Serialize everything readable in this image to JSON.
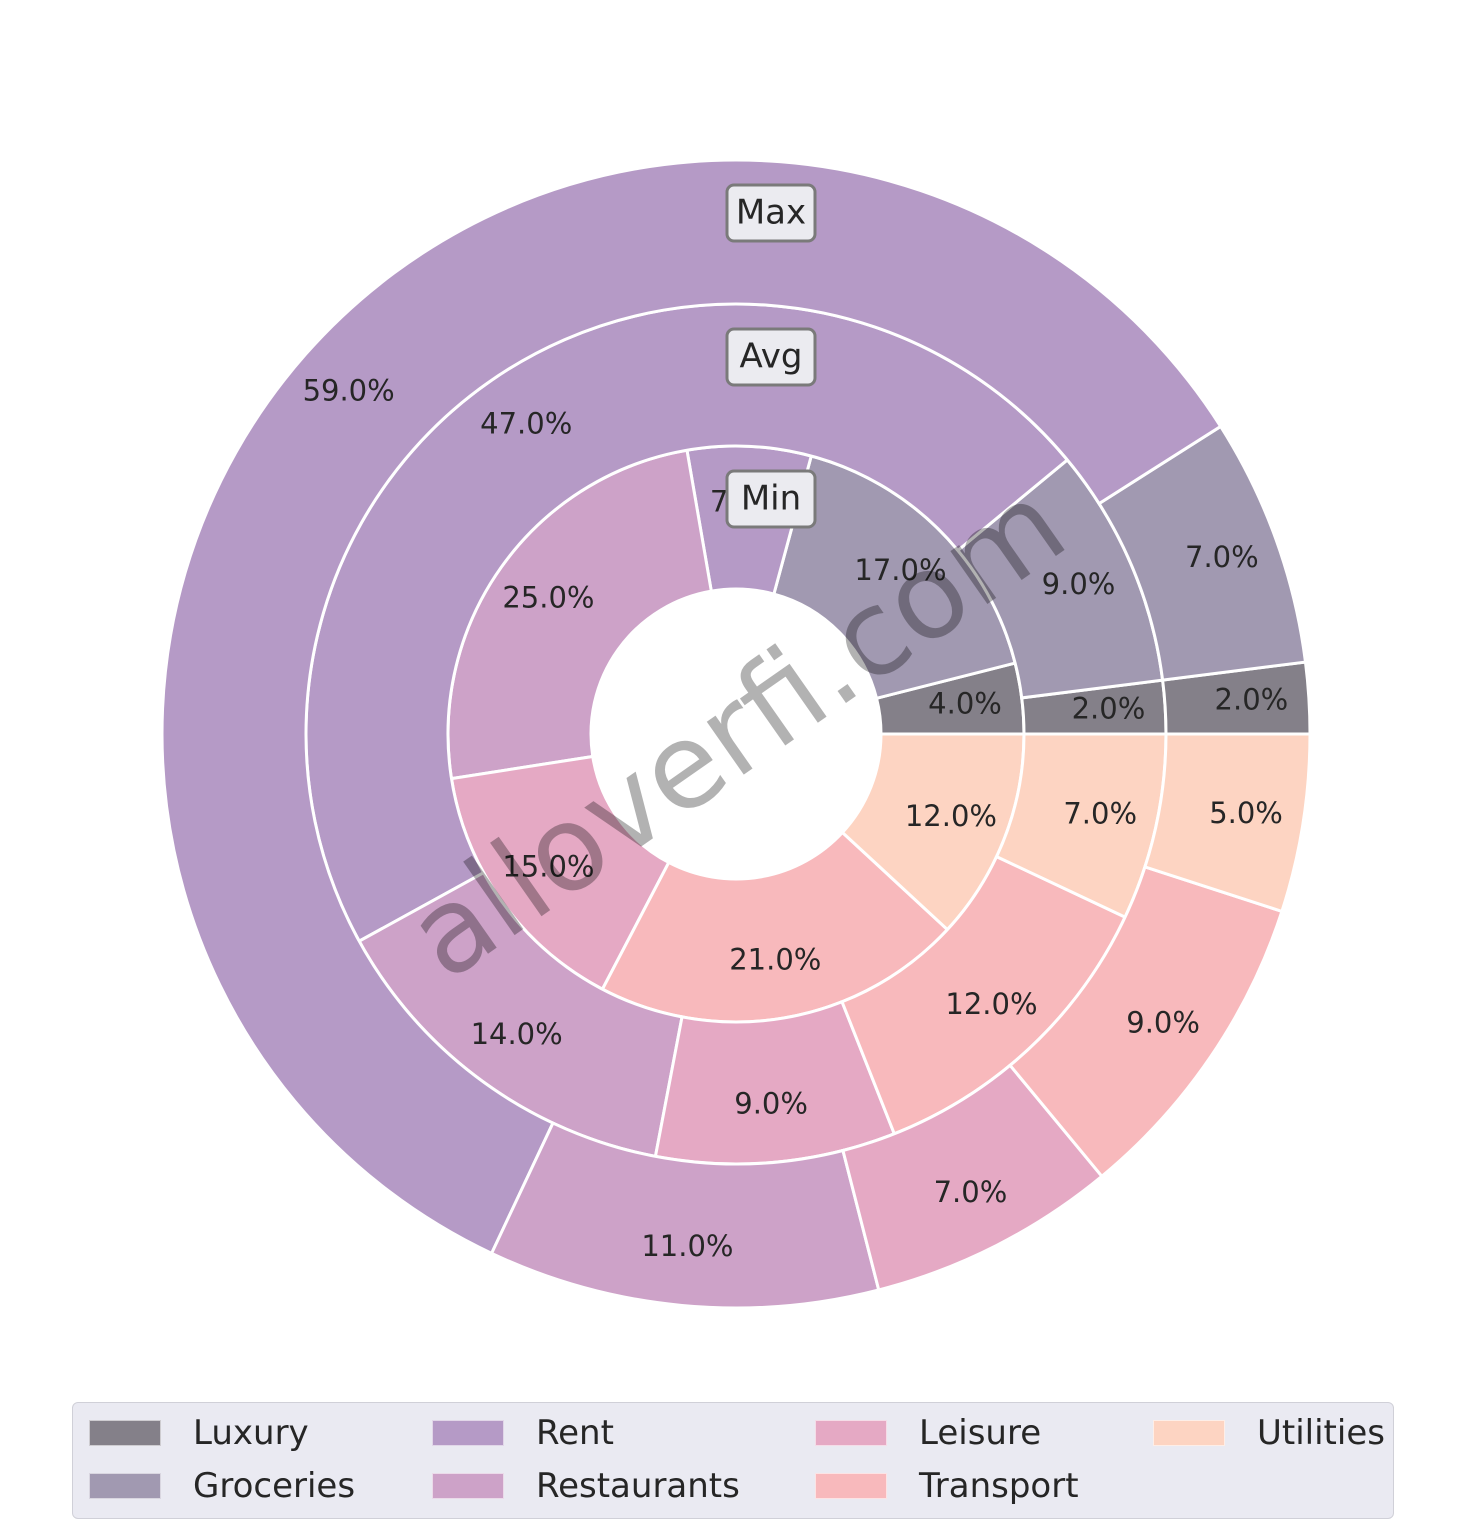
{
  "chart_data": {
    "type": "nested-donut",
    "rings": [
      {
        "name": "Min",
        "slices": [
          {
            "category": "Luxury",
            "value": 4.0,
            "label": "4.0%"
          },
          {
            "category": "Groceries",
            "value": 17.0,
            "label": "17.0%"
          },
          {
            "category": "Rent",
            "value": 7.0,
            "label": "7.0%"
          },
          {
            "category": "Restaurants",
            "value": 25.0,
            "label": "25.0%"
          },
          {
            "category": "Leisure",
            "value": 15.0,
            "label": "15.0%"
          },
          {
            "category": "Transport",
            "value": 21.0,
            "label": "21.0%"
          },
          {
            "category": "Utilities",
            "value": 12.0,
            "label": "12.0%"
          }
        ]
      },
      {
        "name": "Avg",
        "slices": [
          {
            "category": "Luxury",
            "value": 2.0,
            "label": "2.0%"
          },
          {
            "category": "Groceries",
            "value": 9.0,
            "label": "9.0%"
          },
          {
            "category": "Rent",
            "value": 47.0,
            "label": "47.0%"
          },
          {
            "category": "Restaurants",
            "value": 14.0,
            "label": "14.0%"
          },
          {
            "category": "Leisure",
            "value": 9.0,
            "label": "9.0%"
          },
          {
            "category": "Transport",
            "value": 12.0,
            "label": "12.0%"
          },
          {
            "category": "Utilities",
            "value": 7.0,
            "label": "7.0%"
          }
        ]
      },
      {
        "name": "Max",
        "slices": [
          {
            "category": "Luxury",
            "value": 2.0,
            "label": "2.0%"
          },
          {
            "category": "Groceries",
            "value": 7.0,
            "label": "7.0%"
          },
          {
            "category": "Rent",
            "value": 59.0,
            "label": "59.0%"
          },
          {
            "category": "Restaurants",
            "value": 11.0,
            "label": "11.0%"
          },
          {
            "category": "Leisure",
            "value": 7.0,
            "label": "7.0%"
          },
          {
            "category": "Transport",
            "value": 9.0,
            "label": "9.0%"
          },
          {
            "category": "Utilities",
            "value": 5.0,
            "label": "5.0%"
          }
        ]
      }
    ],
    "colors": {
      "Luxury": "#848089",
      "Groceries": "#a199b1",
      "Rent": "#b59ac6",
      "Restaurants": "#cda2c8",
      "Leisure": "#e5a9c4",
      "Transport": "#f8b9bc",
      "Utilities": "#fdd4c2"
    },
    "legend": {
      "position": "bottom",
      "entries": [
        "Luxury",
        "Groceries",
        "Rent",
        "Restaurants",
        "Leisure",
        "Transport",
        "Utilities"
      ]
    }
  },
  "watermark": "alloverfi.com"
}
